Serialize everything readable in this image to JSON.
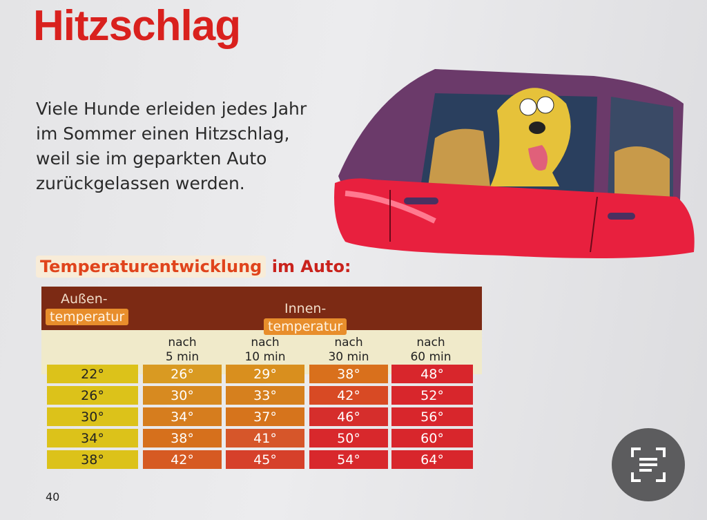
{
  "page": {
    "title": "Hitzschlag",
    "intro": [
      "Viele Hunde erleiden jedes Jahr",
      "im Sommer einen Hitzschlag,",
      "weil sie im geparkten Auto",
      "zurückgelassen werden."
    ],
    "page_number": "40"
  },
  "table": {
    "caption_highlight": "Temperaturentwicklung",
    "caption_rest": "im Auto:",
    "outside_header": [
      "Außen-",
      "temperatur"
    ],
    "inside_header": [
      "Innen-",
      "temperatur"
    ],
    "columns": [
      [
        "nach",
        "5 min"
      ],
      [
        "nach",
        "10 min"
      ],
      [
        "nach",
        "30 min"
      ],
      [
        "nach",
        "60 min"
      ]
    ],
    "rows": [
      [
        "22°",
        "26°",
        "29°",
        "38°",
        "48°"
      ],
      [
        "26°",
        "30°",
        "33°",
        "42°",
        "52°"
      ],
      [
        "30°",
        "34°",
        "37°",
        "46°",
        "56°"
      ],
      [
        "34°",
        "38°",
        "41°",
        "50°",
        "60°"
      ],
      [
        "38°",
        "42°",
        "45°",
        "54°",
        "64°"
      ]
    ]
  }
}
